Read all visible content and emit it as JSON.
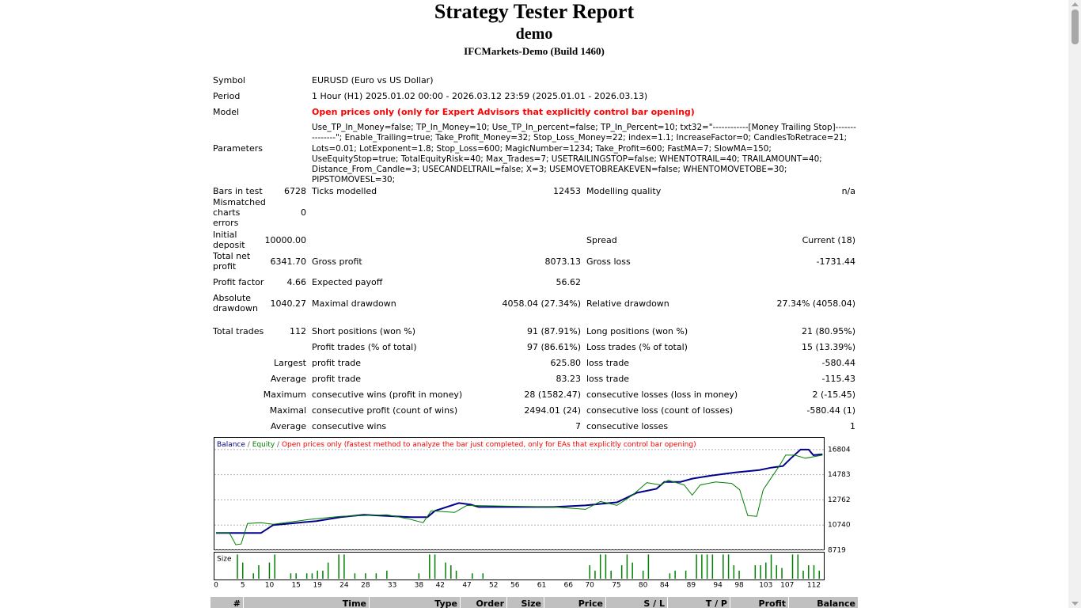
{
  "header": {
    "title": "Strategy Tester Report",
    "account": "demo",
    "server": "IFCMarkets-Demo (Build 1460)"
  },
  "settings": [
    {
      "label": "Symbol",
      "value": "EURUSD (Euro vs US Dollar)"
    },
    {
      "label": "Period",
      "value": "1 Hour (H1) 2025.01.02 00:00 - 2026.03.12 23:59 (2025.01.01 - 2026.03.13)"
    },
    {
      "label": "Model",
      "value": "Open prices only (only for Expert Advisors that explicitly control bar opening)"
    },
    {
      "label": "Parameters",
      "value": "Use_TP_In_Money=false; TP_In_Money=10; Use_TP_In_percent=false; TP_In_Percent=10; txt32=\"------------[Money Trailing Stop]---------------\"; Enable_Trailing=true; Take_Profit_Money=32; Stop_Loss_Money=22; index=1.1; IncreaseFactor=0; CandlesToRetrace=21; Lots=0.01; LotExponent=1.8; Stop_Loss=600; MagicNumber=1234; Take_Profit=600; FastMA=7; SlowMA=150; UseEquityStop=true; TotalEquityRisk=40; Max_Trades=7; USETRAILINGSTOP=false; WHENTOTRAIL=40; TRAILAMOUNT=40; Distance_From_Candle=3; USECANDELTRAIL=false; X=3; USEMOVETOBREAKEVEN=false; WHENTOMOVETOBE=30; PIPSTOMOVESL=30;"
    }
  ],
  "stats": [
    [
      "Bars in test",
      "6728",
      "Ticks modelled",
      "12453",
      "Modelling quality",
      "n/a"
    ],
    [
      "Mismatched charts errors",
      "0",
      null,
      null,
      null,
      null
    ],
    [
      "Initial deposit",
      "10000.00",
      null,
      null,
      "Spread",
      "Current (18)"
    ],
    [
      "Total net profit",
      "6341.70",
      "Gross profit",
      "8073.13",
      "Gross loss",
      "-1731.44"
    ],
    [
      "Profit factor",
      "4.66",
      "Expected payoff",
      "56.62",
      null,
      null
    ],
    [
      "Absolute drawdown",
      "1040.27",
      "Maximal drawdown",
      "4058.04 (27.34%)",
      "Relative drawdown",
      "27.34% (4058.04)"
    ],
    [
      "Total trades",
      "112",
      "Short positions (won %)",
      "91 (87.91%)",
      "Long positions (won %)",
      "21 (80.95%)"
    ],
    [
      null,
      null,
      "Profit trades (% of total)",
      "97 (86.61%)",
      "Loss trades (% of total)",
      "15 (13.39%)"
    ],
    [
      null,
      "Largest",
      "profit trade",
      "625.80",
      "loss trade",
      "-580.44"
    ],
    [
      null,
      "Average",
      "profit trade",
      "83.23",
      "loss trade",
      "-115.43"
    ],
    [
      null,
      "Maximum",
      "consecutive wins (profit in money)",
      "28 (1582.47)",
      "consecutive losses (loss in money)",
      "2 (-15.45)"
    ],
    [
      null,
      "Maximal",
      "consecutive profit (count of wins)",
      "2494.01 (24)",
      "consecutive loss (count of losses)",
      "-580.44 (1)"
    ],
    [
      null,
      "Average",
      "consecutive wins",
      "7",
      "consecutive losses",
      "1"
    ]
  ],
  "chart_data": [
    {
      "type": "line",
      "legend_separator": "/",
      "note": "Open prices only (fastest method to analyze the bar just completed, only for EAs that explicitly control bar opening)",
      "note_color": "#ff0000",
      "xlim": [
        0,
        114
      ],
      "ylim": [
        8719,
        17814
      ],
      "yticks": [
        8719,
        10740,
        12762,
        14783,
        16804
      ],
      "grid": true,
      "series": [
        {
          "name": "Balance",
          "color": "#00008b",
          "x": [
            0,
            8.4,
            10.7,
            18.8,
            23.3,
            27.7,
            36.6,
            39.6,
            41,
            45.5,
            47.7,
            49.2,
            63.3,
            69.2,
            72,
            75.1,
            77.3,
            78.8,
            82.5,
            84,
            87,
            89.2,
            92.9,
            97.3,
            101.8,
            104,
            106.2,
            107.7,
            109.5,
            111,
            111.9,
            113.6
          ],
          "values": [
            10100,
            10100,
            10740,
            11060,
            11370,
            11560,
            11370,
            11370,
            11880,
            12510,
            12380,
            12190,
            12190,
            12320,
            12440,
            12570,
            13010,
            13330,
            13650,
            14210,
            14210,
            14470,
            14720,
            14970,
            15160,
            15350,
            15480,
            16110,
            16800,
            16800,
            16360,
            16420
          ]
        },
        {
          "name": "Equity",
          "color": "#008000",
          "x": [
            0,
            2.5,
            3.7,
            4.7,
            5.9,
            8.4,
            10.7,
            17.3,
            23.3,
            32,
            35.9,
            38.8,
            40.3,
            44.7,
            47,
            63.3,
            69.2,
            72,
            75.1,
            78,
            80.7,
            83.3,
            84.7,
            87.7,
            89.2,
            90.7,
            93.6,
            96.6,
            98.1,
            99.6,
            101.3,
            102.5,
            105.5,
            106.7,
            108.4,
            110.4,
            113.6
          ],
          "values": [
            10100,
            10100,
            9160,
            9220,
            10870,
            10930,
            10800,
            11180,
            11440,
            11560,
            11250,
            10930,
            11880,
            11750,
            12320,
            12190,
            12000,
            12640,
            12320,
            13140,
            14150,
            13960,
            14340,
            13960,
            13140,
            13960,
            14210,
            14090,
            13580,
            11500,
            11440,
            13580,
            15480,
            16360,
            16360,
            16110,
            16360
          ]
        }
      ]
    },
    {
      "type": "bar",
      "title": "Size",
      "color": "#008000",
      "xlim": [
        0,
        114
      ],
      "ylim": [
        0,
        0.1
      ],
      "xticks": [
        0,
        5,
        10,
        15,
        19,
        24,
        28,
        33,
        38,
        42,
        47,
        52,
        56,
        61,
        66,
        70,
        75,
        80,
        84,
        89,
        94,
        98,
        103,
        107,
        112
      ],
      "x": [
        4,
        5,
        7,
        8,
        10,
        11,
        14,
        15,
        17,
        18,
        19,
        20,
        21,
        23,
        24,
        26,
        28,
        30,
        32,
        38,
        40,
        41,
        43,
        44,
        45,
        48,
        50,
        70,
        71,
        72,
        73,
        74,
        76,
        77,
        78,
        80,
        81,
        85,
        86,
        88,
        90,
        91,
        92,
        93,
        95,
        96,
        97,
        98,
        101,
        102,
        103,
        104,
        105,
        106,
        108,
        109,
        110,
        111,
        112,
        113
      ],
      "values": [
        0.09,
        0.06,
        0.02,
        0.05,
        0.06,
        0.09,
        0.02,
        0.02,
        0.02,
        0.02,
        0.03,
        0.03,
        0.06,
        0.09,
        0.09,
        0.02,
        0.02,
        0.02,
        0.03,
        0.02,
        0.09,
        0.09,
        0.06,
        0.05,
        0.03,
        0.02,
        0.02,
        0.05,
        0.03,
        0.09,
        0.09,
        0.03,
        0.05,
        0.09,
        0.06,
        0.03,
        0.09,
        0.02,
        0.03,
        0.03,
        0.09,
        0.09,
        0.09,
        0.09,
        0.09,
        0.09,
        0.05,
        0.03,
        0.05,
        0.05,
        0.06,
        0.09,
        0.05,
        0.04,
        0.09,
        0.09,
        0.03,
        0.05,
        0.05,
        0.03
      ]
    }
  ],
  "trades_table": {
    "columns": [
      "#",
      "Time",
      "Type",
      "Order",
      "Size",
      "Price",
      "S / L",
      "T / P",
      "Profit",
      "Balance"
    ]
  }
}
